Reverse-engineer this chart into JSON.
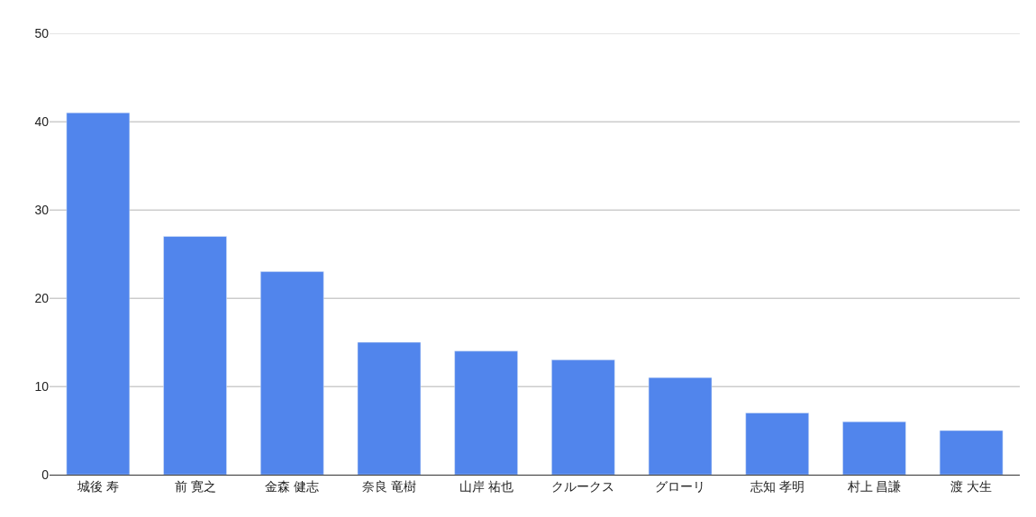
{
  "chart_data": {
    "type": "bar",
    "categories": [
      "城後 寿",
      "前 寛之",
      "金森 健志",
      "奈良 竜樹",
      "山岸 祐也",
      "クルークス",
      "グローリ",
      "志知 孝明",
      "村上 昌謙",
      "渡 大生"
    ],
    "values": [
      41,
      27,
      23,
      15,
      14,
      13,
      11,
      7,
      6,
      5
    ],
    "color": "#5185ec",
    "ylim": [
      0,
      50
    ],
    "yticks": [
      0,
      10,
      20,
      30,
      40,
      50
    ],
    "grid": "y"
  }
}
